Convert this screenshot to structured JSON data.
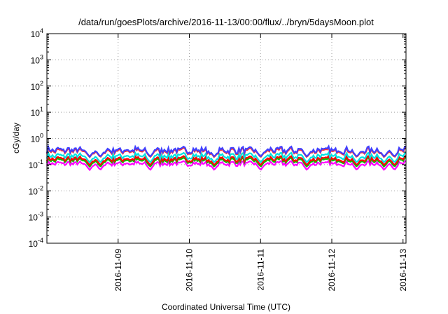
{
  "chart_data": {
    "type": "line",
    "title": "/data/run/goesPlots/archive/2016-11-13/00:00/flux/../bryn/5daysMoon.plot",
    "xlabel": "Coordinated Universal Time (UTC)",
    "ylabel": "cGy/day",
    "yscale": "log",
    "ylim": [
      0.0001,
      10000
    ],
    "xlim": [
      "2016-11-08 00:00",
      "2016-11-13 01:00"
    ],
    "grid": true,
    "legend": "none",
    "y_ticks": [
      {
        "base": "10",
        "exp": "-4",
        "value": 0.0001
      },
      {
        "base": "10",
        "exp": "-3",
        "value": 0.001
      },
      {
        "base": "10",
        "exp": "-2",
        "value": 0.01
      },
      {
        "base": "10",
        "exp": "-1",
        "value": 0.1
      },
      {
        "base": "10",
        "exp": "0",
        "value": 1
      },
      {
        "base": "10",
        "exp": "1",
        "value": 10
      },
      {
        "base": "10",
        "exp": "2",
        "value": 100
      },
      {
        "base": "10",
        "exp": "3",
        "value": 1000
      },
      {
        "base": "10",
        "exp": "4",
        "value": 10000
      }
    ],
    "x_ticks": [
      {
        "label": "2016-11-09",
        "value": "2016-11-09"
      },
      {
        "label": "2016-11-10",
        "value": "2016-11-10"
      },
      {
        "label": "2016-11-11",
        "value": "2016-11-11"
      },
      {
        "label": "2016-11-12",
        "value": "2016-11-12"
      },
      {
        "label": "2016-11-13",
        "value": "2016-11-13"
      }
    ],
    "dip_times": [
      "2016-11-08 14:24",
      "2016-11-08 18:00",
      "2016-11-09 10:48",
      "2016-11-10 08:24",
      "2016-11-11 00:00",
      "2016-11-11 15:36",
      "2016-11-12 08:24",
      "2016-11-12 17:38",
      "2016-11-12 21:07"
    ],
    "series": [
      {
        "color": "#ff00ff",
        "level": 0.11,
        "dip": 0.062
      },
      {
        "color": "#00c000",
        "level": 0.145,
        "dip": 0.082
      },
      {
        "color": "#ff0000",
        "level": 0.165,
        "dip": 0.095
      },
      {
        "color": "#00e0e0",
        "level": 0.215,
        "dip": 0.12
      },
      {
        "color": "#ff3030",
        "level": 0.33,
        "dip": 0.19
      },
      {
        "color": "#4040ff",
        "level": 0.36,
        "dip": 0.2
      }
    ]
  }
}
